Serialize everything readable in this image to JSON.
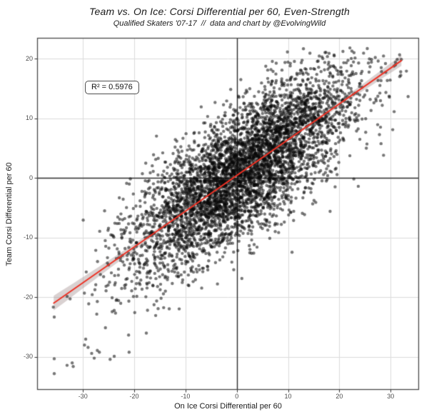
{
  "header": {
    "title": "Team vs. On Ice: Corsi Differential per 60, Even-Strength",
    "subtitle": "Qualified Skaters '07-17  //  data and chart by @EvolvingWild"
  },
  "annotation": {
    "r_squared_label": "R² = 0.5976"
  },
  "chart_data": {
    "type": "scatter",
    "title": "Team vs. On Ice: Corsi Differential per 60, Even-Strength",
    "subtitle": "Qualified Skaters '07-17  //  data and chart by @EvolvingWild",
    "xlabel": "On Ice Corsi Differential per 60",
    "ylabel": "Team Corsi Differential per 60",
    "xlim": [
      -38.8,
      35.4
    ],
    "ylim": [
      -35.4,
      23.4
    ],
    "x_ticks": [
      -30,
      -20,
      -10,
      0,
      10,
      20,
      30
    ],
    "y_ticks": [
      20,
      10,
      0,
      -10,
      -20,
      -30
    ],
    "grid": "major-only",
    "legend": "none",
    "zero_reference_lines": true,
    "r_squared": 0.5976,
    "regression_line": {
      "slope": 0.6,
      "intercept": 0.45,
      "x_start": -35.7,
      "x_end": 32.1,
      "color": "#ee3124",
      "width": 2
    },
    "confidence_band": {
      "color_rgb": "160,140,140",
      "alpha": 0.4,
      "half_width_center": 0.2,
      "half_width_curvature": 0.00075,
      "center_x": 1.5
    },
    "point_style": {
      "color_rgb": "10,10,10",
      "alpha": 0.55,
      "radius": 2.2
    },
    "point_cloud": {
      "n": 4800,
      "seed": 1337,
      "x_mean": 1.5,
      "x_sd": 11,
      "residual_sd": 5.4,
      "x_range": [
        -37.0,
        33.5
      ],
      "y_range": [
        -33.2,
        22.0
      ],
      "description": "Dense cloud of ~4800 qualified-skater seasons; y = 0.60x + 0.45 + N(0,5.4), R² = 0.5976"
    },
    "notable_points": [
      [
        -35.6,
        -32.8
      ],
      [
        -35.6,
        -30.3
      ],
      [
        -35.6,
        -23.3
      ],
      [
        -33.1,
        -31.4
      ],
      [
        -32.1,
        -31.0
      ],
      [
        -31.9,
        -31.6
      ],
      [
        -29.7,
        -28.0
      ],
      [
        -29.0,
        -28.4
      ],
      [
        -28.3,
        -29.4
      ],
      [
        -27.8,
        -30.2
      ],
      [
        -27.2,
        -28.9
      ],
      [
        -26.8,
        -29.2
      ],
      [
        -24.7,
        -30.4
      ],
      [
        -23.9,
        -29.9
      ],
      [
        -24.3,
        -22.4
      ],
      [
        -21.0,
        -29.2
      ],
      [
        13.0,
        21.7
      ],
      [
        19.0,
        20.5
      ],
      [
        29.0,
        19.2
      ],
      [
        32.1,
        19.9
      ]
    ],
    "colors": {
      "background": "#ffffff",
      "grid": "#dcdcdc",
      "zero_line": "#2e2e2e",
      "border": "#4a4a4a",
      "tick_mark": "#333333",
      "tick_label": "#4d4d4d",
      "text": "#1a1a1a",
      "accent_red": "#ee3124"
    }
  }
}
